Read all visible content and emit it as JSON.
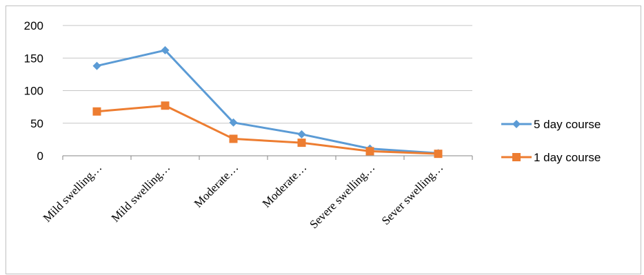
{
  "chart_data": {
    "type": "line",
    "categories": [
      "Mild swelling…",
      "Mild swelling…",
      "Moderate…",
      "Moderate…",
      "Severe swelling…",
      "Sever swelling…"
    ],
    "series": [
      {
        "name": "5 day course",
        "values": [
          138,
          162,
          51,
          33,
          11,
          4
        ],
        "color": "#5B9BD5",
        "marker": "diamond"
      },
      {
        "name": "1 day course",
        "values": [
          68,
          77,
          26,
          20,
          7,
          3
        ],
        "color": "#ED7D31",
        "marker": "square"
      }
    ],
    "yticks": [
      "0",
      "50",
      "100",
      "150",
      "200"
    ],
    "ylim": [
      0,
      200
    ],
    "grid": true,
    "legend": "right"
  }
}
